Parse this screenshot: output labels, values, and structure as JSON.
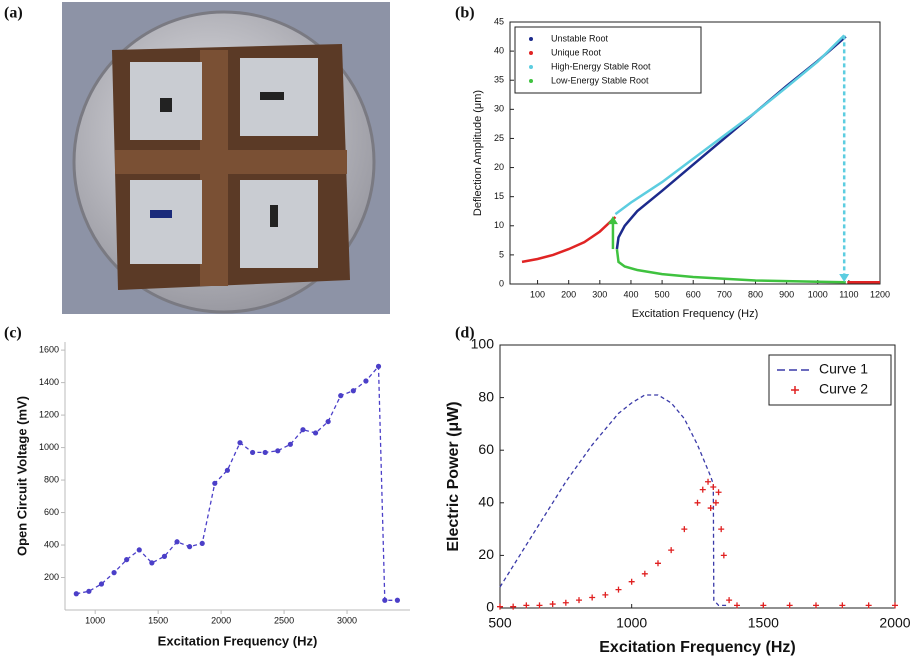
{
  "photo": {
    "label": "(a)"
  },
  "chart_data": [
    {
      "type": "line",
      "label": "(b)",
      "xlabel": "Excitation Frequency (Hz)",
      "ylabel": "Deflection Amplitude (μm)",
      "xlim": [
        50,
        1200
      ],
      "xticks": [
        100,
        200,
        300,
        400,
        500,
        600,
        700,
        800,
        900,
        1000,
        1100,
        1200
      ],
      "ylim": [
        0,
        45
      ],
      "yticks": [
        0,
        5,
        10,
        15,
        20,
        25,
        30,
        35,
        40,
        45
      ],
      "legend": "upper left",
      "series": [
        {
          "name": "Unstable Root",
          "color": "#1c2a8c",
          "x": [
            355,
            360,
            380,
            420,
            500,
            600,
            700,
            800,
            900,
            1000,
            1090
          ],
          "values": [
            6,
            8,
            10,
            12.5,
            16,
            20.5,
            25,
            29.5,
            34,
            38.3,
            42.5
          ]
        },
        {
          "name": "Unique Root",
          "color": "#e02424",
          "x": [
            50,
            100,
            150,
            200,
            250,
            300,
            350,
            1090,
            1095,
            1200
          ],
          "values": [
            3.8,
            4.3,
            5,
            6,
            7.2,
            9,
            11.5,
            null,
            0.3,
            0.3
          ]
        },
        {
          "name": "High-Energy Stable Root",
          "color": "#5ccde0",
          "x": [
            350,
            400,
            500,
            600,
            700,
            800,
            900,
            1000,
            1085
          ],
          "values": [
            12,
            14,
            17.5,
            21.5,
            25.5,
            29.5,
            33.8,
            38.2,
            42.7
          ]
        },
        {
          "name": "Low-Energy Stable Root",
          "color": "#3fc23f",
          "x": [
            355,
            360,
            380,
            420,
            500,
            600,
            700,
            800,
            900,
            1000,
            1090
          ],
          "values": [
            6,
            3.8,
            3,
            2.4,
            1.7,
            1.2,
            0.9,
            0.6,
            0.5,
            0.4,
            0.3
          ]
        }
      ]
    },
    {
      "type": "line",
      "label": "(c)",
      "xlabel": "Excitation Frequency (Hz)",
      "ylabel": "Open Circuit Voltage  (mV)",
      "xlim": [
        800,
        3500
      ],
      "xticks": [
        1000,
        1500,
        2000,
        2500,
        3000
      ],
      "ylim": [
        0,
        1650
      ],
      "yticks": [
        200,
        400,
        600,
        800,
        1000,
        1200,
        1400,
        1600
      ],
      "series": [
        {
          "color": "#4b3fc8",
          "style": "dashed-markers",
          "x": [
            850,
            950,
            1050,
            1150,
            1250,
            1350,
            1450,
            1550,
            1650,
            1750,
            1850,
            1950,
            2050,
            2150,
            2250,
            2350,
            2450,
            2550,
            2650,
            2750,
            2850,
            2950,
            3050,
            3150,
            3250,
            3300,
            3400
          ],
          "values": [
            100,
            115,
            160,
            230,
            310,
            370,
            290,
            330,
            420,
            390,
            410,
            780,
            860,
            1030,
            970,
            970,
            980,
            1020,
            1110,
            1090,
            1160,
            1320,
            1350,
            1410,
            1500,
            60,
            60
          ]
        }
      ]
    },
    {
      "type": "line",
      "label": "(d)",
      "xlabel": "Excitation Frequency (Hz)",
      "ylabel": "Electric Power  (μW)",
      "xlim": [
        500,
        2000
      ],
      "xticks": [
        500,
        1000,
        1500,
        2000
      ],
      "ylim": [
        0,
        100
      ],
      "yticks": [
        0,
        20,
        40,
        60,
        80,
        100
      ],
      "legend": "upper right",
      "series": [
        {
          "name": "Curve 1",
          "color": "#3a3aa8",
          "style": "dashed",
          "x": [
            500,
            550,
            600,
            650,
            700,
            750,
            800,
            850,
            900,
            950,
            1000,
            1050,
            1100,
            1150,
            1200,
            1250,
            1300,
            1310,
            1312,
            1330,
            1360
          ],
          "values": [
            8,
            16,
            24,
            32,
            40,
            48,
            55,
            62,
            68,
            74,
            78,
            81,
            81,
            78,
            72,
            62,
            50,
            47,
            3,
            1,
            1
          ]
        },
        {
          "name": "Curve 2",
          "color": "#e02020",
          "style": "markers",
          "x": [
            500,
            550,
            600,
            650,
            700,
            750,
            800,
            850,
            900,
            950,
            1000,
            1050,
            1100,
            1150,
            1200,
            1250,
            1270,
            1290,
            1300,
            1310,
            1320,
            1330,
            1340,
            1350,
            1370,
            1400,
            1500,
            1600,
            1700,
            1800,
            1900,
            2000
          ],
          "values": [
            0.5,
            0.5,
            1,
            1,
            1.5,
            2,
            3,
            4,
            5,
            7,
            10,
            13,
            17,
            22,
            30,
            40,
            45,
            48,
            38,
            46,
            40,
            44,
            30,
            20,
            3,
            1,
            1,
            1,
            1,
            1,
            1,
            1
          ]
        }
      ]
    }
  ]
}
